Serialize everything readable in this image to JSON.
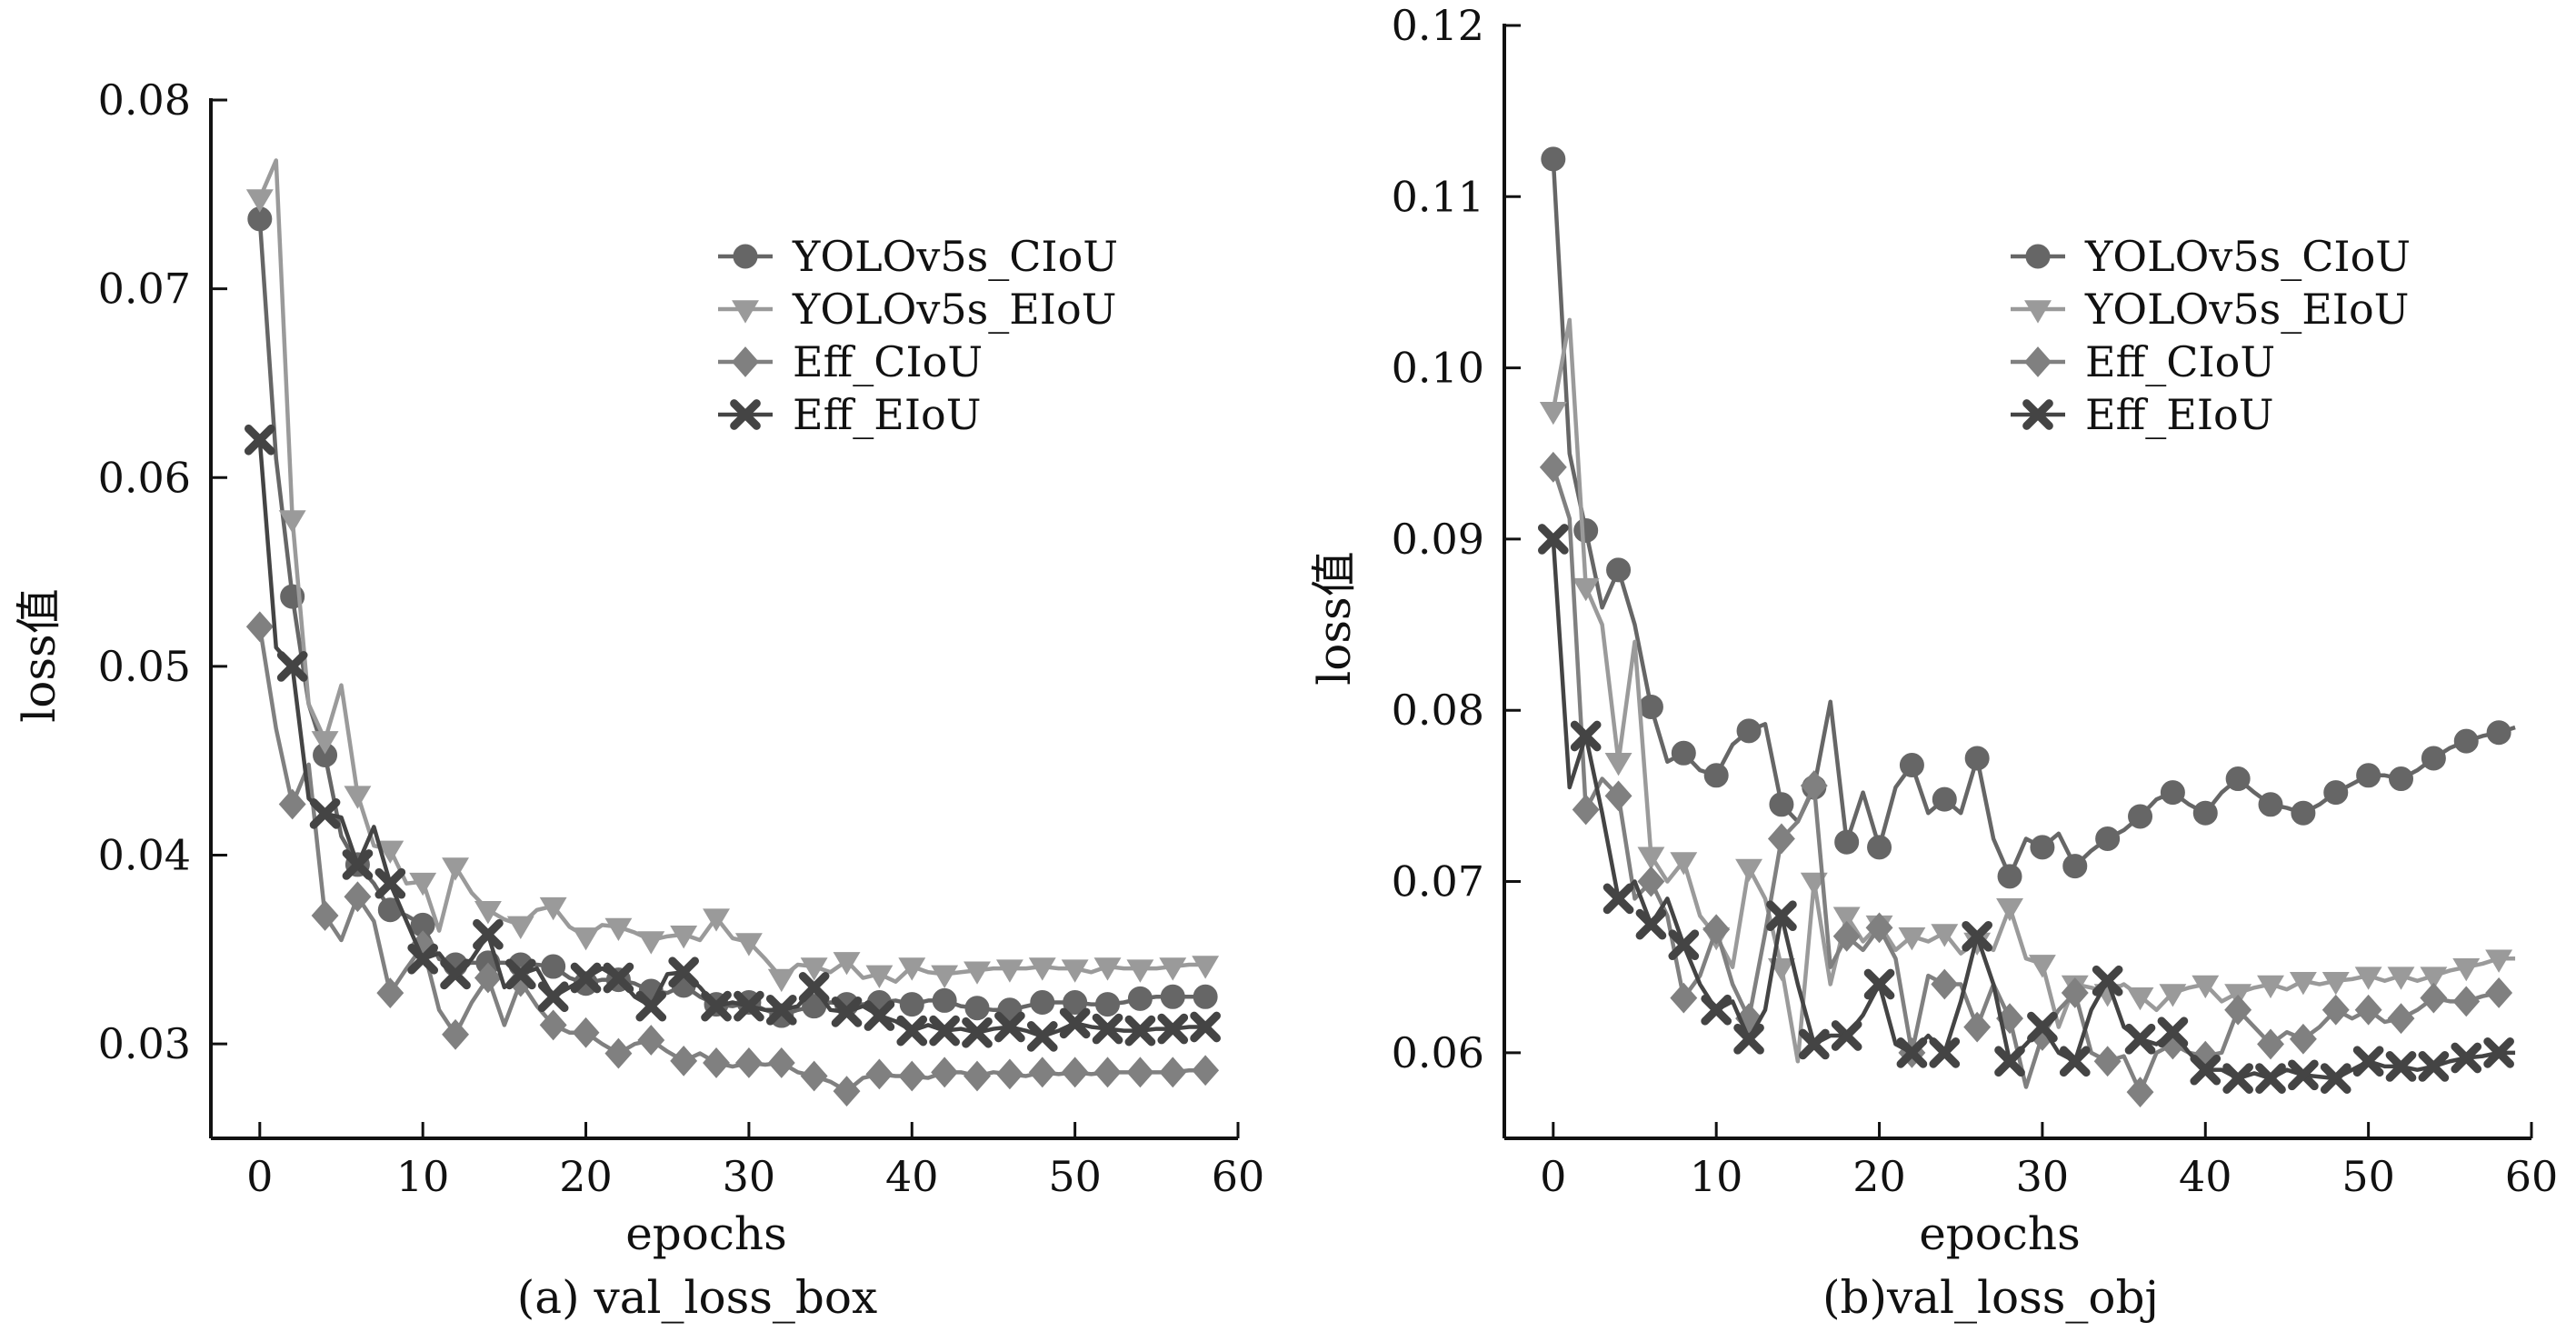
{
  "chart_data": [
    {
      "type": "line",
      "caption": "(a) val_loss_box",
      "xlabel": "epochs",
      "ylabel": "loss值",
      "xlim": [
        -3,
        60
      ],
      "ylim": [
        0.025,
        0.08
      ],
      "xticks": [
        0,
        10,
        20,
        30,
        40,
        50,
        60
      ],
      "yticks": [
        0.03,
        0.04,
        0.05,
        0.06,
        0.07,
        0.08
      ],
      "ytick_labels": [
        "0.03",
        "0.04",
        "0.05",
        "0.06",
        "0.07",
        "0.08"
      ],
      "grid": false,
      "legend_position": "top-right",
      "series": [
        {
          "name": "YOLOv5s_CIoU",
          "marker": "circle",
          "color": "#666666",
          "x": [
            0,
            1,
            2,
            3,
            4,
            5,
            6,
            7,
            8,
            9,
            10,
            11,
            12,
            13,
            14,
            15,
            16,
            17,
            18,
            19,
            20,
            21,
            22,
            23,
            24,
            25,
            26,
            27,
            28,
            29,
            30,
            31,
            32,
            33,
            34,
            35,
            36,
            37,
            38,
            39,
            40,
            41,
            42,
            43,
            44,
            45,
            46,
            47,
            48,
            49,
            50,
            51,
            52,
            53,
            54,
            55,
            56,
            57,
            58
          ],
          "y": [
            0.0737,
            0.061,
            0.0537,
            0.048,
            0.0453,
            0.041,
            0.0395,
            0.0385,
            0.0371,
            0.0368,
            0.0363,
            0.0345,
            0.0342,
            0.0343,
            0.0343,
            0.0343,
            0.0342,
            0.0342,
            0.0341,
            0.0335,
            0.0332,
            0.0334,
            0.0334,
            0.0332,
            0.0328,
            0.0327,
            0.0331,
            0.0325,
            0.0321,
            0.032,
            0.0322,
            0.0318,
            0.0315,
            0.0318,
            0.032,
            0.0322,
            0.0321,
            0.0321,
            0.0322,
            0.0323,
            0.0321,
            0.0323,
            0.0323,
            0.032,
            0.0319,
            0.0318,
            0.0318,
            0.032,
            0.0322,
            0.0322,
            0.0322,
            0.0321,
            0.0321,
            0.0322,
            0.0324,
            0.0325,
            0.0325,
            0.0325,
            0.0325
          ]
        },
        {
          "name": "YOLOv5s_EIoU",
          "marker": "triangle-down",
          "color": "#9a9a9a",
          "x": [
            0,
            1,
            2,
            3,
            4,
            5,
            6,
            7,
            8,
            9,
            10,
            11,
            12,
            13,
            14,
            15,
            16,
            17,
            18,
            19,
            20,
            21,
            22,
            23,
            24,
            25,
            26,
            27,
            28,
            29,
            30,
            31,
            32,
            33,
            34,
            35,
            36,
            37,
            38,
            39,
            40,
            41,
            42,
            43,
            44,
            45,
            46,
            47,
            48,
            49,
            50,
            51,
            52,
            53,
            54,
            55,
            56,
            57,
            58
          ],
          "y": [
            0.0748,
            0.0768,
            0.0578,
            0.048,
            0.0461,
            0.049,
            0.0432,
            0.0405,
            0.0403,
            0.0385,
            0.0386,
            0.036,
            0.0394,
            0.038,
            0.0371,
            0.0366,
            0.0363,
            0.0371,
            0.0373,
            0.0362,
            0.0357,
            0.0363,
            0.0362,
            0.0359,
            0.0355,
            0.0357,
            0.0358,
            0.0355,
            0.0367,
            0.0356,
            0.0354,
            0.0345,
            0.0335,
            0.0342,
            0.0341,
            0.0338,
            0.0344,
            0.0335,
            0.0337,
            0.0333,
            0.0341,
            0.0338,
            0.0337,
            0.0338,
            0.0339,
            0.034,
            0.034,
            0.034,
            0.0341,
            0.034,
            0.034,
            0.0338,
            0.0341,
            0.034,
            0.034,
            0.034,
            0.0341,
            0.0342,
            0.0342
          ]
        },
        {
          "name": "Eff_CIoU",
          "marker": "diamond",
          "color": "#808080",
          "x": [
            0,
            1,
            2,
            3,
            4,
            5,
            6,
            7,
            8,
            9,
            10,
            11,
            12,
            13,
            14,
            15,
            16,
            17,
            18,
            19,
            20,
            21,
            22,
            23,
            24,
            25,
            26,
            27,
            28,
            29,
            30,
            31,
            32,
            33,
            34,
            35,
            36,
            37,
            38,
            39,
            40,
            41,
            42,
            43,
            44,
            45,
            46,
            47,
            48,
            49,
            50,
            51,
            52,
            53,
            54,
            55,
            56,
            57,
            58
          ],
          "y": [
            0.0521,
            0.0467,
            0.0427,
            0.0448,
            0.0368,
            0.0355,
            0.0378,
            0.0365,
            0.0327,
            0.034,
            0.0352,
            0.0318,
            0.0305,
            0.0322,
            0.0335,
            0.031,
            0.0333,
            0.032,
            0.031,
            0.0306,
            0.0306,
            0.03,
            0.0295,
            0.03,
            0.0302,
            0.0296,
            0.0291,
            0.0295,
            0.029,
            0.0288,
            0.029,
            0.0289,
            0.029,
            0.0285,
            0.0283,
            0.028,
            0.0275,
            0.0282,
            0.0284,
            0.0283,
            0.0283,
            0.0282,
            0.0285,
            0.0285,
            0.0283,
            0.0285,
            0.0284,
            0.0283,
            0.0285,
            0.0284,
            0.0285,
            0.0284,
            0.0285,
            0.0285,
            0.0285,
            0.0285,
            0.0285,
            0.0286,
            0.0286
          ]
        },
        {
          "name": "Eff_EIoU",
          "marker": "x",
          "color": "#444444",
          "x": [
            0,
            1,
            2,
            3,
            4,
            5,
            6,
            7,
            8,
            9,
            10,
            11,
            12,
            13,
            14,
            15,
            16,
            17,
            18,
            19,
            20,
            21,
            22,
            23,
            24,
            25,
            26,
            27,
            28,
            29,
            30,
            31,
            32,
            33,
            34,
            35,
            36,
            37,
            38,
            39,
            40,
            41,
            42,
            43,
            44,
            45,
            46,
            47,
            48,
            49,
            50,
            51,
            52,
            53,
            54,
            55,
            56,
            57,
            58
          ],
          "y": [
            0.062,
            0.051,
            0.05,
            0.043,
            0.0422,
            0.042,
            0.0395,
            0.0415,
            0.0385,
            0.0365,
            0.0345,
            0.0348,
            0.0337,
            0.0345,
            0.0358,
            0.033,
            0.0337,
            0.034,
            0.0325,
            0.033,
            0.0335,
            0.034,
            0.0335,
            0.0325,
            0.032,
            0.0337,
            0.0338,
            0.033,
            0.032,
            0.0322,
            0.032,
            0.0318,
            0.0318,
            0.032,
            0.033,
            0.0318,
            0.0317,
            0.032,
            0.0315,
            0.0312,
            0.0307,
            0.031,
            0.0307,
            0.0308,
            0.0306,
            0.0308,
            0.0309,
            0.0307,
            0.0304,
            0.0307,
            0.0311,
            0.0309,
            0.0308,
            0.0307,
            0.0307,
            0.0308,
            0.0308,
            0.0309,
            0.0309
          ]
        }
      ]
    },
    {
      "type": "line",
      "caption": "(b)val_loss_obj",
      "xlabel": "epochs",
      "ylabel": "loss值",
      "xlim": [
        -3,
        60
      ],
      "ylim": [
        0.055,
        0.12
      ],
      "xticks": [
        0,
        10,
        20,
        30,
        40,
        50,
        60
      ],
      "yticks": [
        0.06,
        0.07,
        0.08,
        0.09,
        0.1,
        0.11,
        0.12
      ],
      "ytick_labels": [
        "0.06",
        "0.07",
        "0.08",
        "0.09",
        "0.10",
        "0.11",
        "0.12"
      ],
      "grid": false,
      "legend_position": "top-right",
      "series": [
        {
          "name": "YOLOv5s_CIoU",
          "marker": "circle",
          "color": "#666666",
          "x": [
            0,
            1,
            2,
            3,
            4,
            5,
            6,
            7,
            8,
            9,
            10,
            11,
            12,
            13,
            14,
            15,
            16,
            17,
            18,
            19,
            20,
            21,
            22,
            23,
            24,
            25,
            26,
            27,
            28,
            29,
            30,
            31,
            32,
            33,
            34,
            35,
            36,
            37,
            38,
            39,
            40,
            41,
            42,
            43,
            44,
            45,
            46,
            47,
            48,
            49,
            50,
            51,
            52,
            53,
            54,
            55,
            56,
            57,
            58,
            59
          ],
          "y": [
            0.1122,
            0.095,
            0.0905,
            0.086,
            0.0882,
            0.085,
            0.0802,
            0.077,
            0.0775,
            0.0765,
            0.0762,
            0.078,
            0.0788,
            0.0792,
            0.0745,
            0.0735,
            0.0755,
            0.0805,
            0.0723,
            0.0752,
            0.072,
            0.0755,
            0.0768,
            0.074,
            0.0748,
            0.074,
            0.0772,
            0.0725,
            0.0703,
            0.0725,
            0.072,
            0.0728,
            0.0709,
            0.0718,
            0.0725,
            0.073,
            0.0738,
            0.0748,
            0.0752,
            0.0745,
            0.074,
            0.0752,
            0.076,
            0.0752,
            0.0745,
            0.0743,
            0.074,
            0.0745,
            0.0752,
            0.0757,
            0.0762,
            0.0762,
            0.076,
            0.0765,
            0.0772,
            0.0778,
            0.0782,
            0.0785,
            0.0787,
            0.079
          ]
        },
        {
          "name": "YOLOv5s_EIoU",
          "marker": "triangle-down",
          "color": "#9a9a9a",
          "x": [
            0,
            1,
            2,
            3,
            4,
            5,
            6,
            7,
            8,
            9,
            10,
            11,
            12,
            13,
            14,
            15,
            16,
            17,
            18,
            19,
            20,
            21,
            22,
            23,
            24,
            25,
            26,
            27,
            28,
            29,
            30,
            31,
            32,
            33,
            34,
            35,
            36,
            37,
            38,
            39,
            40,
            41,
            42,
            43,
            44,
            45,
            46,
            47,
            48,
            49,
            50,
            51,
            52,
            53,
            54,
            55,
            56,
            57,
            58,
            59
          ],
          "y": [
            0.0975,
            0.1028,
            0.0872,
            0.085,
            0.077,
            0.084,
            0.0715,
            0.07,
            0.0712,
            0.068,
            0.0668,
            0.065,
            0.0708,
            0.069,
            0.065,
            0.0595,
            0.07,
            0.064,
            0.068,
            0.0665,
            0.0675,
            0.066,
            0.0668,
            0.0665,
            0.067,
            0.0658,
            0.0665,
            0.066,
            0.0685,
            0.0655,
            0.0652,
            0.0615,
            0.064,
            0.0638,
            0.0635,
            0.064,
            0.0633,
            0.0625,
            0.0635,
            0.0638,
            0.064,
            0.063,
            0.0635,
            0.0638,
            0.064,
            0.0637,
            0.0642,
            0.064,
            0.0642,
            0.0643,
            0.0645,
            0.0642,
            0.0645,
            0.0642,
            0.0645,
            0.0648,
            0.065,
            0.0652,
            0.0655,
            0.0655
          ]
        },
        {
          "name": "Eff_CIoU",
          "marker": "diamond",
          "color": "#808080",
          "x": [
            0,
            1,
            2,
            3,
            4,
            5,
            6,
            7,
            8,
            9,
            10,
            11,
            12,
            13,
            14,
            15,
            16,
            17,
            18,
            19,
            20,
            21,
            22,
            23,
            24,
            25,
            26,
            27,
            28,
            29,
            30,
            31,
            32,
            33,
            34,
            35,
            36,
            37,
            38,
            39,
            40,
            41,
            42,
            43,
            44,
            45,
            46,
            47,
            48,
            49,
            50,
            51,
            52,
            53,
            54,
            55,
            56,
            57,
            58
          ],
          "y": [
            0.0942,
            0.0912,
            0.0742,
            0.076,
            0.075,
            0.069,
            0.07,
            0.068,
            0.0632,
            0.0645,
            0.0672,
            0.064,
            0.062,
            0.067,
            0.0725,
            0.0735,
            0.0756,
            0.065,
            0.0668,
            0.066,
            0.0673,
            0.0655,
            0.06,
            0.0645,
            0.064,
            0.064,
            0.0615,
            0.064,
            0.062,
            0.058,
            0.061,
            0.0625,
            0.0635,
            0.06,
            0.0595,
            0.0598,
            0.0577,
            0.06,
            0.0605,
            0.06,
            0.0598,
            0.06,
            0.0625,
            0.0615,
            0.0605,
            0.0612,
            0.0608,
            0.0615,
            0.0625,
            0.062,
            0.0625,
            0.0618,
            0.062,
            0.0625,
            0.0632,
            0.063,
            0.063,
            0.0633,
            0.0635
          ]
        },
        {
          "name": "Eff_EIoU",
          "marker": "x",
          "color": "#444444",
          "x": [
            0,
            1,
            2,
            3,
            4,
            5,
            6,
            7,
            8,
            9,
            10,
            11,
            12,
            13,
            14,
            15,
            16,
            17,
            18,
            19,
            20,
            21,
            22,
            23,
            24,
            25,
            26,
            27,
            28,
            29,
            30,
            31,
            32,
            33,
            34,
            35,
            36,
            37,
            38,
            39,
            40,
            41,
            42,
            43,
            44,
            45,
            46,
            47,
            48,
            49,
            50,
            51,
            52,
            53,
            54,
            55,
            56,
            57,
            58,
            59
          ],
          "y": [
            0.09,
            0.0755,
            0.0785,
            0.074,
            0.069,
            0.07,
            0.0675,
            0.069,
            0.0663,
            0.064,
            0.0625,
            0.063,
            0.0608,
            0.0625,
            0.068,
            0.064,
            0.0605,
            0.061,
            0.061,
            0.0622,
            0.064,
            0.0605,
            0.06,
            0.061,
            0.06,
            0.063,
            0.0668,
            0.064,
            0.0595,
            0.0605,
            0.0615,
            0.06,
            0.0595,
            0.0625,
            0.0642,
            0.0615,
            0.0608,
            0.0605,
            0.0612,
            0.06,
            0.059,
            0.059,
            0.0585,
            0.0588,
            0.0585,
            0.059,
            0.0587,
            0.0586,
            0.0585,
            0.059,
            0.0595,
            0.0592,
            0.0592,
            0.059,
            0.0592,
            0.0595,
            0.0597,
            0.0598,
            0.06,
            0.06
          ]
        }
      ]
    }
  ]
}
